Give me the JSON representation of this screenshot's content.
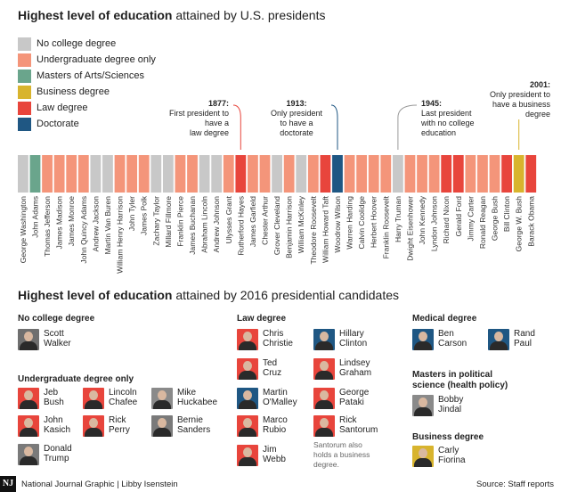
{
  "title1": {
    "bold": "Highest level of education",
    "rest": " attained by U.S. presidents"
  },
  "legend": [
    {
      "label": "No college degree",
      "color": "#c8c8c8"
    },
    {
      "label": "Undergraduate degree only",
      "color": "#f4957a"
    },
    {
      "label": "Masters of Arts/Sciences",
      "color": "#6aa58c"
    },
    {
      "label": "Business degree",
      "color": "#d8b42e"
    },
    {
      "label": "Law degree",
      "color": "#e8453c"
    },
    {
      "label": "Doctorate",
      "color": "#1f5783"
    }
  ],
  "chart_data": {
    "type": "bar",
    "title": "Highest level of education attained by U.S. presidents",
    "categories": [
      "George Washington",
      "John Adams",
      "Thomas Jefferson",
      "James Madison",
      "James Monroe",
      "John Quincy Adams",
      "Andrew Jackson",
      "Martin Van Buren",
      "William Henry Harrison",
      "John Tyler",
      "James Polk",
      "Zachary Taylor",
      "Millard Fillmore",
      "Franklin Pierce",
      "James Buchanan",
      "Abraham Lincoln",
      "Andrew Johnson",
      "Ulysses Grant",
      "Rutherford Hayes",
      "James Garfield",
      "Chester Arthur",
      "Grover Cleveland",
      "Benjamin Harrison",
      "William McKinley",
      "Theodore Roosevelt",
      "William Howard Taft",
      "Woodrow Wilson",
      "Warren Harding",
      "Calvin Coolidge",
      "Herbert Hoover",
      "Franklin Roosevelt",
      "Harry Truman",
      "Dwight Eisenhower",
      "John Kennedy",
      "Lyndon Johnson",
      "Richard Nixon",
      "Gerald Ford",
      "Jimmy Carter",
      "Ronald Reagan",
      "George Bush",
      "Bill Clinton",
      "George W. Bush",
      "Barack Obama"
    ],
    "education": [
      "No college degree",
      "Masters of Arts/Sciences",
      "Undergraduate degree only",
      "Undergraduate degree only",
      "Undergraduate degree only",
      "Undergraduate degree only",
      "No college degree",
      "No college degree",
      "Undergraduate degree only",
      "Undergraduate degree only",
      "Undergraduate degree only",
      "No college degree",
      "No college degree",
      "Undergraduate degree only",
      "Undergraduate degree only",
      "No college degree",
      "No college degree",
      "Undergraduate degree only",
      "Law degree",
      "Undergraduate degree only",
      "Undergraduate degree only",
      "No college degree",
      "Undergraduate degree only",
      "No college degree",
      "Undergraduate degree only",
      "Law degree",
      "Doctorate",
      "Undergraduate degree only",
      "Undergraduate degree only",
      "Undergraduate degree only",
      "Undergraduate degree only",
      "No college degree",
      "Undergraduate degree only",
      "Undergraduate degree only",
      "Undergraduate degree only",
      "Law degree",
      "Law degree",
      "Undergraduate degree only",
      "Undergraduate degree only",
      "Undergraduate degree only",
      "Law degree",
      "Business degree",
      "Law degree"
    ],
    "annotations": [
      {
        "year": "1877:",
        "text": [
          "First president to",
          "have a",
          "law degree"
        ],
        "target": "Rutherford Hayes"
      },
      {
        "year": "1913:",
        "text": [
          "Only president",
          "to have a",
          "doctorate"
        ],
        "target": "Woodrow Wilson"
      },
      {
        "year": "1945:",
        "text": [
          "Last president",
          "with no college",
          "education"
        ],
        "target": "Harry Truman"
      },
      {
        "year": "2001:",
        "text": [
          "Only president to",
          "have a business",
          "degree"
        ],
        "target": "George W. Bush"
      }
    ]
  },
  "title2": {
    "bold": "Highest level of education",
    "rest": " attained by 2016 presidential candidates"
  },
  "groups": {
    "no_college": {
      "header": "No college degree",
      "candidates": [
        {
          "name": [
            "Scott",
            "Walker"
          ]
        }
      ]
    },
    "undergrad": {
      "header": "Undergraduate degree only",
      "candidates": [
        {
          "name": [
            "Jeb",
            "Bush"
          ]
        },
        {
          "name": [
            "Lincoln",
            "Chafee"
          ]
        },
        {
          "name": [
            "Mike",
            "Huckabee"
          ]
        },
        {
          "name": [
            "John",
            "Kasich"
          ]
        },
        {
          "name": [
            "Rick",
            "Perry"
          ]
        },
        {
          "name": [
            "Bernie",
            "Sanders"
          ]
        },
        {
          "name": [
            "Donald",
            "Trump"
          ]
        }
      ]
    },
    "law": {
      "header": "Law degree",
      "candidates": [
        {
          "name": [
            "Chris",
            "Christie"
          ]
        },
        {
          "name": [
            "Hillary",
            "Clinton"
          ]
        },
        {
          "name": [
            "Ted",
            "Cruz"
          ]
        },
        {
          "name": [
            "Lindsey",
            "Graham"
          ]
        },
        {
          "name": [
            "Martin",
            "O'Malley"
          ]
        },
        {
          "name": [
            "George",
            "Pataki"
          ]
        },
        {
          "name": [
            "Marco",
            "Rubio"
          ]
        },
        {
          "name": [
            "Rick",
            "Santorum"
          ]
        },
        {
          "name": [
            "Jim",
            "Webb"
          ]
        }
      ],
      "note": [
        "Santorum also",
        "holds a business",
        "degree."
      ]
    },
    "medical": {
      "header": "Medical degree",
      "candidates": [
        {
          "name": [
            "Ben",
            "Carson"
          ]
        },
        {
          "name": [
            "Rand",
            "Paul"
          ]
        }
      ]
    },
    "masters_ps": {
      "header": [
        "Masters in political",
        "science (health policy)"
      ],
      "candidates": [
        {
          "name": [
            "Bobby",
            "Jindal"
          ]
        }
      ]
    },
    "business": {
      "header": "Business degree",
      "candidates": [
        {
          "name": [
            "Carly",
            "Fiorina"
          ]
        }
      ]
    }
  },
  "footer": {
    "logo": "NJ",
    "credit": "National Journal Graphic  |  Libby Isenstein",
    "source": "Source: Staff reports"
  }
}
